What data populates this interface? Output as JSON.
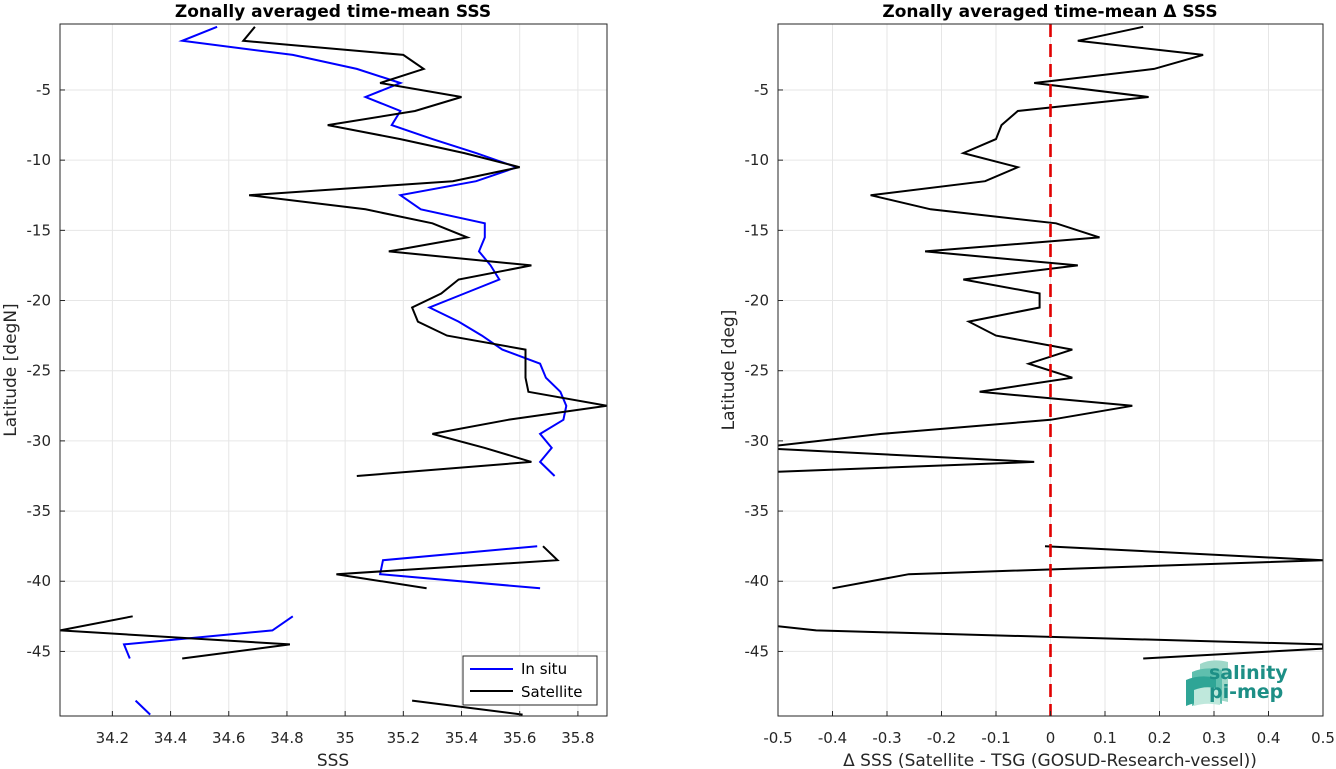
{
  "chart_data": [
    {
      "type": "line",
      "title": "Zonally averaged time-mean SSS",
      "xlabel": "SSS",
      "ylabel": "Latitude [degN]",
      "xlim": [
        34.02,
        35.9
      ],
      "ylim": [
        -49.6,
        -0.3
      ],
      "xticks": [
        34.2,
        34.4,
        34.6,
        34.8,
        35,
        35.2,
        35.4,
        35.6,
        35.8
      ],
      "xticklabels": [
        "34.2",
        "34.4",
        "34.6",
        "34.8",
        "35",
        "35.2",
        "35.4",
        "35.6",
        "35.8"
      ],
      "yticks": [
        -5,
        -10,
        -15,
        -20,
        -25,
        -30,
        -35,
        -40,
        -45
      ],
      "yticklabels": [
        "-5",
        "-10",
        "-15",
        "-20",
        "-25",
        "-30",
        "-35",
        "-40",
        "-45"
      ],
      "grid": true,
      "legend": "bottom-right",
      "series": [
        {
          "name": "In situ",
          "color": "#0000ff",
          "segments": [
            [
              [
                34.56,
                -0.5
              ],
              [
                34.44,
                -1.5
              ],
              [
                34.82,
                -2.5
              ],
              [
                35.04,
                -3.5
              ],
              [
                35.19,
                -4.5
              ],
              [
                35.07,
                -5.5
              ],
              [
                35.19,
                -6.5
              ],
              [
                35.16,
                -7.5
              ],
              [
                35.3,
                -8.5
              ],
              [
                35.45,
                -9.5
              ],
              [
                35.59,
                -10.5
              ],
              [
                35.45,
                -11.5
              ],
              [
                35.19,
                -12.5
              ],
              [
                35.26,
                -13.5
              ],
              [
                35.48,
                -14.5
              ],
              [
                35.48,
                -15.5
              ],
              [
                35.46,
                -16.5
              ],
              [
                35.5,
                -17.5
              ],
              [
                35.53,
                -18.5
              ],
              [
                35.41,
                -19.5
              ],
              [
                35.29,
                -20.5
              ],
              [
                35.39,
                -21.5
              ],
              [
                35.47,
                -22.5
              ],
              [
                35.54,
                -23.5
              ],
              [
                35.67,
                -24.5
              ],
              [
                35.69,
                -25.5
              ],
              [
                35.74,
                -26.5
              ],
              [
                35.76,
                -27.5
              ],
              [
                35.75,
                -28.5
              ],
              [
                35.67,
                -29.5
              ],
              [
                35.71,
                -30.5
              ],
              [
                35.67,
                -31.5
              ],
              [
                35.72,
                -32.5
              ]
            ],
            [
              [
                35.66,
                -37.5
              ],
              [
                35.13,
                -38.5
              ],
              [
                35.12,
                -39.5
              ],
              [
                35.67,
                -40.5
              ]
            ],
            [
              [
                34.82,
                -42.5
              ],
              [
                34.75,
                -43.5
              ],
              [
                34.24,
                -44.5
              ],
              [
                34.26,
                -45.5
              ]
            ],
            [
              [
                34.28,
                -48.5
              ],
              [
                34.33,
                -49.5
              ]
            ]
          ]
        },
        {
          "name": "Satellite",
          "color": "#000000",
          "segments": [
            [
              [
                34.69,
                -0.5
              ],
              [
                34.65,
                -1.5
              ],
              [
                35.2,
                -2.5
              ],
              [
                35.27,
                -3.5
              ],
              [
                35.12,
                -4.5
              ],
              [
                35.4,
                -5.5
              ],
              [
                35.24,
                -6.5
              ],
              [
                34.94,
                -7.5
              ],
              [
                35.19,
                -8.5
              ],
              [
                35.41,
                -9.5
              ],
              [
                35.6,
                -10.5
              ],
              [
                35.37,
                -11.5
              ],
              [
                34.67,
                -12.5
              ],
              [
                35.07,
                -13.5
              ],
              [
                35.3,
                -14.5
              ],
              [
                35.42,
                -15.5
              ],
              [
                35.15,
                -16.5
              ],
              [
                35.64,
                -17.5
              ],
              [
                35.39,
                -18.5
              ],
              [
                35.33,
                -19.5
              ],
              [
                35.23,
                -20.5
              ],
              [
                35.25,
                -21.5
              ],
              [
                35.35,
                -22.5
              ],
              [
                35.62,
                -23.5
              ],
              [
                35.62,
                -24.5
              ],
              [
                35.62,
                -25.5
              ],
              [
                35.63,
                -26.5
              ],
              [
                35.9,
                -27.5
              ],
              [
                35.56,
                -28.5
              ],
              [
                35.3,
                -29.5
              ],
              [
                35.48,
                -30.5
              ],
              [
                35.64,
                -31.5
              ],
              [
                35.04,
                -32.5
              ]
            ],
            [
              [
                35.68,
                -37.5
              ],
              [
                35.73,
                -38.5
              ],
              [
                34.97,
                -39.5
              ],
              [
                35.28,
                -40.5
              ]
            ],
            [
              [
                34.27,
                -42.5
              ],
              [
                34.02,
                -43.5
              ],
              [
                34.81,
                -44.5
              ],
              [
                34.44,
                -45.5
              ]
            ],
            [
              [
                35.23,
                -48.5
              ],
              [
                35.61,
                -49.5
              ]
            ]
          ]
        }
      ]
    },
    {
      "type": "line",
      "title": "Zonally averaged time-mean Δ SSS",
      "xlabel": "Δ SSS (Satellite - TSG (GOSUD-Research-vessel))",
      "ylabel": "Latitude [deg]",
      "xlim": [
        -0.5,
        0.5
      ],
      "ylim": [
        -49.6,
        -0.3
      ],
      "xticks": [
        -0.5,
        -0.4,
        -0.3,
        -0.2,
        -0.1,
        0,
        0.1,
        0.2,
        0.3,
        0.4,
        0.5
      ],
      "xticklabels": [
        "-0.5",
        "-0.4",
        "-0.3",
        "-0.2",
        "-0.1",
        "0",
        "0.1",
        "0.2",
        "0.3",
        "0.4",
        "0.5"
      ],
      "yticks": [
        -5,
        -10,
        -15,
        -20,
        -25,
        -30,
        -35,
        -40,
        -45
      ],
      "yticklabels": [
        "-5",
        "-10",
        "-15",
        "-20",
        "-25",
        "-30",
        "-35",
        "-40",
        "-45"
      ],
      "grid": true,
      "zero_line": {
        "x": 0,
        "color": "#e00000",
        "style": "dashed"
      },
      "series": [
        {
          "color": "#000000",
          "segments": [
            [
              [
                0.17,
                -0.5
              ],
              [
                0.05,
                -1.5
              ],
              [
                0.28,
                -2.5
              ],
              [
                0.19,
                -3.5
              ],
              [
                -0.03,
                -4.5
              ],
              [
                0.18,
                -5.5
              ],
              [
                -0.06,
                -6.5
              ],
              [
                -0.09,
                -7.5
              ],
              [
                -0.1,
                -8.5
              ],
              [
                -0.16,
                -9.5
              ],
              [
                -0.06,
                -10.5
              ],
              [
                -0.12,
                -11.5
              ],
              [
                -0.33,
                -12.5
              ],
              [
                -0.22,
                -13.5
              ],
              [
                0.01,
                -14.5
              ],
              [
                0.09,
                -15.5
              ],
              [
                -0.23,
                -16.5
              ],
              [
                0.05,
                -17.5
              ],
              [
                -0.16,
                -18.5
              ],
              [
                -0.02,
                -19.5
              ],
              [
                -0.02,
                -20.5
              ],
              [
                -0.15,
                -21.5
              ],
              [
                -0.1,
                -22.5
              ],
              [
                0.04,
                -23.5
              ],
              [
                -0.04,
                -24.5
              ],
              [
                0.04,
                -25.5
              ],
              [
                -0.13,
                -26.5
              ],
              [
                0.15,
                -27.5
              ],
              [
                0,
                -28.5
              ],
              [
                -0.31,
                -29.5
              ],
              [
                -0.54,
                -30.5
              ],
              [
                -0.03,
                -31.5
              ],
              [
                -0.5,
                -32.2
              ]
            ],
            [
              [
                -0.01,
                -37.5
              ],
              [
                0.5,
                -38.5
              ],
              [
                -0.26,
                -39.5
              ],
              [
                -0.4,
                -40.5
              ]
            ],
            [
              [
                -0.5,
                -43.2
              ],
              [
                -0.43,
                -43.5
              ],
              [
                0.5,
                -44.5
              ],
              [
                0.5,
                -44.8
              ],
              [
                0.17,
                -45.5
              ]
            ]
          ]
        }
      ]
    }
  ],
  "logo": {
    "line1": "salinity",
    "line2": "pi-mep"
  }
}
